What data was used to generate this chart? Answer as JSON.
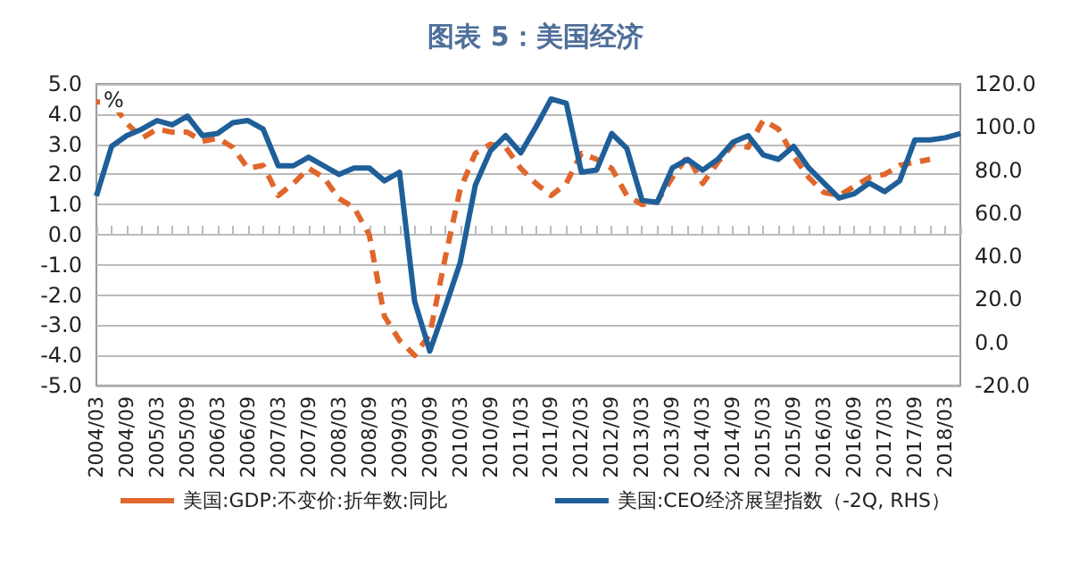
{
  "chart_data": {
    "type": "line",
    "title": "图表 5：美国经济",
    "annotations": [
      "%"
    ],
    "categories": [
      "2004/03",
      null,
      "2004/09",
      null,
      "2005/03",
      null,
      "2005/09",
      null,
      "2006/03",
      null,
      "2006/09",
      null,
      "2007/03",
      null,
      "2007/09",
      null,
      "2008/03",
      null,
      "2008/09",
      null,
      "2009/03",
      null,
      "2009/09",
      null,
      "2010/03",
      null,
      "2010/09",
      null,
      "2011/03",
      null,
      "2011/09",
      null,
      "2012/03",
      null,
      "2012/09",
      null,
      "2013/03",
      null,
      "2013/09",
      null,
      "2014/03",
      null,
      "2014/09",
      null,
      "2015/03",
      null,
      "2015/09",
      null,
      "2016/03",
      null,
      "2016/09",
      null,
      "2017/03",
      null,
      "2017/09",
      null,
      "2018/03",
      null
    ],
    "series": [
      {
        "name": "美国:GDP:不变价:折年数:同比",
        "color": "#e0662b",
        "line_style": "dashed",
        "values": [
          4.4,
          4.4,
          3.7,
          3.2,
          3.5,
          3.4,
          3.4,
          3.1,
          3.2,
          2.9,
          2.2,
          2.3,
          1.3,
          1.7,
          2.2,
          1.9,
          1.2,
          0.9,
          0.0,
          -2.7,
          -3.5,
          -4.0,
          -3.3,
          -0.8,
          1.5,
          2.7,
          3.0,
          2.9,
          2.2,
          1.7,
          1.3,
          1.7,
          2.7,
          2.5,
          2.2,
          1.3,
          1.0,
          1.1,
          1.9,
          2.6,
          1.7,
          2.4,
          3.0,
          2.9,
          3.8,
          3.5,
          2.6,
          1.9,
          1.4,
          1.3,
          1.6,
          1.9,
          2.0,
          2.3,
          2.4,
          2.5,
          null,
          null
        ]
      },
      {
        "name": "美国:CEO经济展望指数（-2Q, RHS）",
        "color": "#1f5f99",
        "line_style": "solid",
        "axis": "y2",
        "values": [
          68,
          91,
          96,
          99,
          103,
          101,
          105,
          96,
          97,
          102,
          103,
          99,
          82,
          82,
          86,
          82,
          78,
          81,
          81,
          75,
          79,
          19,
          -4,
          16,
          37,
          73,
          89,
          96,
          88,
          100,
          113,
          111,
          79,
          80,
          97,
          90,
          66,
          65,
          81,
          85,
          80,
          85,
          93,
          96,
          87,
          85,
          91,
          81,
          74,
          67,
          69,
          74,
          70,
          75,
          94,
          94,
          95,
          97
        ]
      }
    ],
    "ylim": [
      -5,
      5
    ],
    "yticks": [
      {
        "value": -5,
        "label": "-5.0"
      },
      {
        "value": -4,
        "label": "-4.0"
      },
      {
        "value": -3,
        "label": "-3.0"
      },
      {
        "value": -2,
        "label": "-2.0"
      },
      {
        "value": -1,
        "label": "-1.0"
      },
      {
        "value": 0,
        "label": "0.0"
      },
      {
        "value": 1,
        "label": "1.0"
      },
      {
        "value": 2,
        "label": "2.0"
      },
      {
        "value": 3,
        "label": "3.0"
      },
      {
        "value": 4,
        "label": "4.0"
      },
      {
        "value": 5,
        "label": "5.0"
      }
    ],
    "y2lim": [
      -20,
      120
    ],
    "y2ticks": [
      {
        "value": -20,
        "label": "-20.0"
      },
      {
        "value": 0,
        "label": "0.0"
      },
      {
        "value": 20,
        "label": "20.0"
      },
      {
        "value": 40,
        "label": "40.0"
      },
      {
        "value": 60,
        "label": "60.0"
      },
      {
        "value": 80,
        "label": "80.0"
      },
      {
        "value": 100,
        "label": "100.0"
      },
      {
        "value": 120,
        "label": "120.0"
      }
    ],
    "grid": "y",
    "legend": "bottom",
    "marker": "none"
  }
}
